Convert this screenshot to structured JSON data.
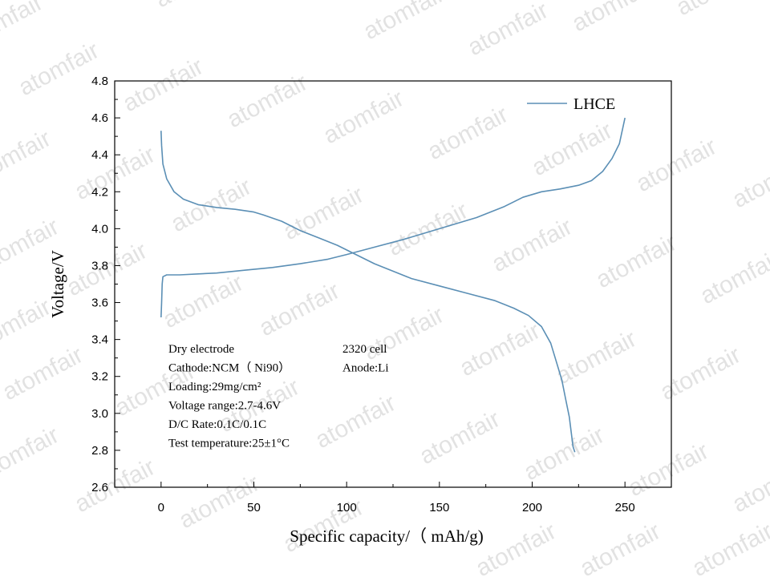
{
  "watermark": {
    "text": "atomfair"
  },
  "chart_data": {
    "type": "line",
    "xlabel": "Specific capacity/（ mAh/g)",
    "ylabel": "Voltage/V",
    "xlim": [
      -25,
      275
    ],
    "ylim": [
      2.6,
      4.8
    ],
    "xticks": [
      0,
      50,
      100,
      150,
      200,
      250
    ],
    "yticks": [
      2.6,
      2.8,
      3.0,
      3.2,
      3.4,
      3.6,
      3.8,
      4.0,
      4.2,
      4.4,
      4.6,
      4.8
    ],
    "grid": false,
    "legend": {
      "position": "top-right",
      "entries": [
        "LHCE"
      ]
    },
    "series": [
      {
        "name": "LHCE",
        "color": "#5b8fb5",
        "segments": [
          {
            "label": "charge",
            "points": [
              [
                0,
                3.52
              ],
              [
                0.3,
                3.6
              ],
              [
                0.6,
                3.7
              ],
              [
                1,
                3.74
              ],
              [
                3,
                3.75
              ],
              [
                10,
                3.75
              ],
              [
                20,
                3.755
              ],
              [
                30,
                3.76
              ],
              [
                45,
                3.775
              ],
              [
                60,
                3.79
              ],
              [
                75,
                3.81
              ],
              [
                90,
                3.835
              ],
              [
                100,
                3.86
              ],
              [
                115,
                3.9
              ],
              [
                130,
                3.94
              ],
              [
                150,
                4.0
              ],
              [
                170,
                4.06
              ],
              [
                185,
                4.12
              ],
              [
                195,
                4.17
              ],
              [
                205,
                4.2
              ],
              [
                215,
                4.215
              ],
              [
                225,
                4.235
              ],
              [
                232,
                4.26
              ],
              [
                238,
                4.31
              ],
              [
                243,
                4.38
              ],
              [
                247,
                4.46
              ],
              [
                250,
                4.6
              ]
            ]
          },
          {
            "label": "discharge",
            "points": [
              [
                0,
                4.53
              ],
              [
                0.3,
                4.45
              ],
              [
                1,
                4.35
              ],
              [
                3,
                4.27
              ],
              [
                7,
                4.2
              ],
              [
                12,
                4.16
              ],
              [
                20,
                4.13
              ],
              [
                30,
                4.115
              ],
              [
                40,
                4.105
              ],
              [
                50,
                4.09
              ],
              [
                55,
                4.075
              ],
              [
                65,
                4.04
              ],
              [
                75,
                3.99
              ],
              [
                85,
                3.95
              ],
              [
                95,
                3.91
              ],
              [
                105,
                3.86
              ],
              [
                115,
                3.81
              ],
              [
                125,
                3.77
              ],
              [
                135,
                3.73
              ],
              [
                150,
                3.69
              ],
              [
                165,
                3.65
              ],
              [
                180,
                3.61
              ],
              [
                190,
                3.57
              ],
              [
                198,
                3.53
              ],
              [
                205,
                3.47
              ],
              [
                210,
                3.38
              ],
              [
                213,
                3.28
              ],
              [
                216,
                3.18
              ],
              [
                218,
                3.08
              ],
              [
                220,
                2.98
              ],
              [
                221,
                2.9
              ],
              [
                222,
                2.82
              ],
              [
                223,
                2.79
              ]
            ]
          }
        ]
      }
    ],
    "annotations": {
      "left": [
        "Dry electrode",
        "Cathode:NCM（ Ni90）",
        "Loading:29mg/cm²",
        "Voltage range:2.7-4.6V",
        "D/C Rate:0.1C/0.1C",
        "Test temperature:25±1°C"
      ],
      "right": [
        "2320  cell",
        "Anode:Li"
      ]
    }
  }
}
